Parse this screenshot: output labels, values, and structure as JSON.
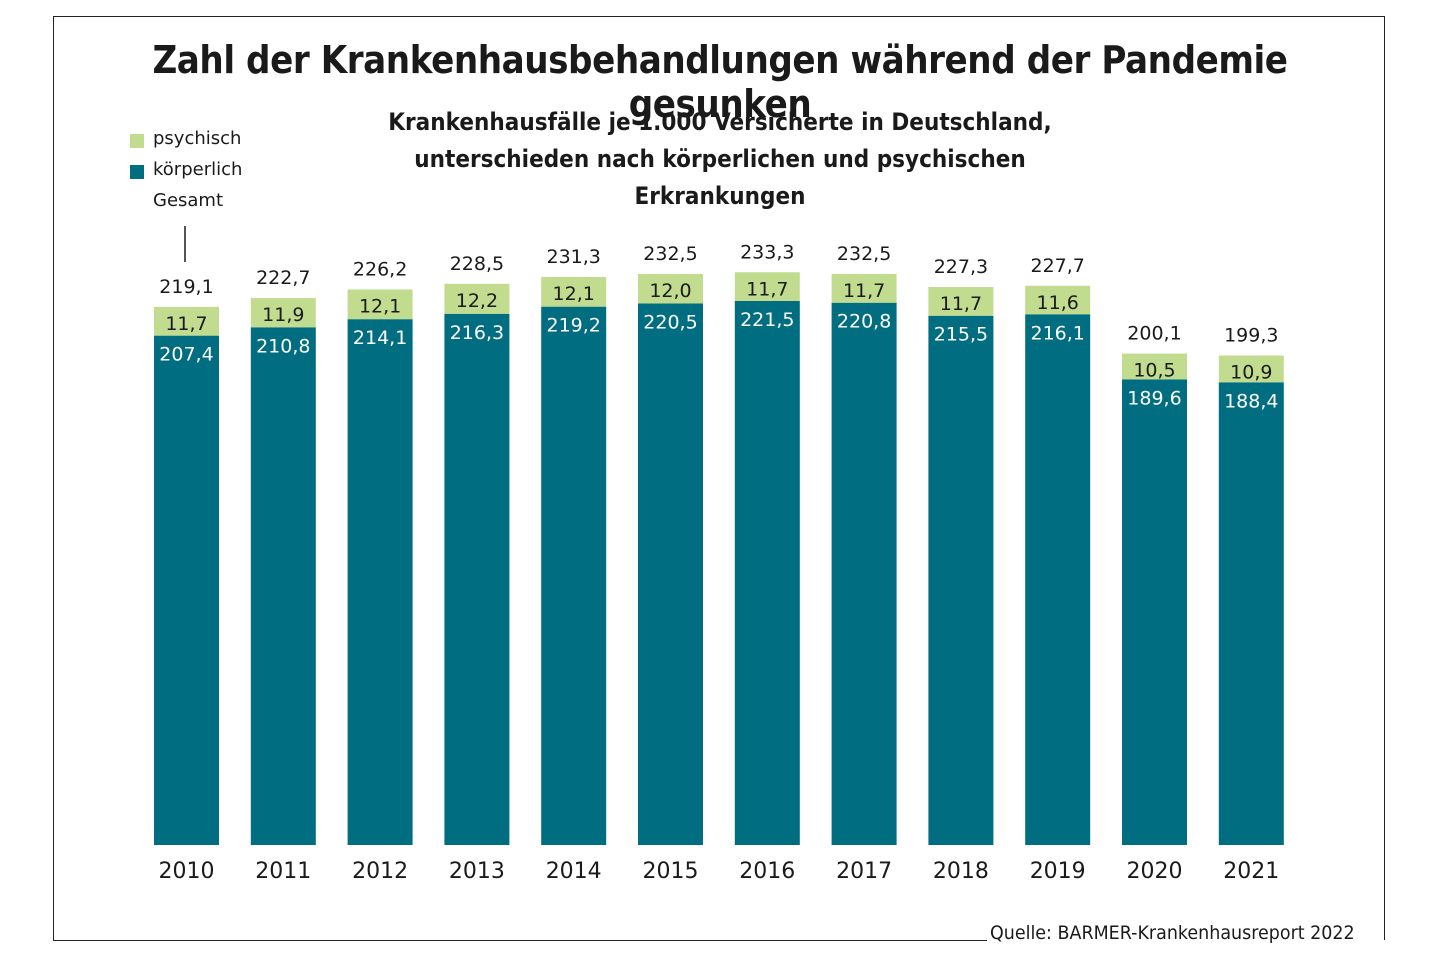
{
  "title": "Zahl der Krankenhausbehandlungen während der Pandemie gesunken",
  "subtitle_line1": "Krankenhausfälle je 1.000 Versicherte in Deutschland,",
  "subtitle_line2": "unterschieden nach körperlichen und psychischen Erkrankungen",
  "legend": {
    "psychisch": "psychisch",
    "koerperlich": "körperlich",
    "gesamt": "Gesamt"
  },
  "source": "Quelle: BARMER-Krankenhausreport 2022",
  "colors": {
    "psychisch": "#c2dc8f",
    "koerperlich": "#016d80",
    "text_dark": "#1a1a1a",
    "text_light": "#ffffff"
  },
  "chart_data": {
    "type": "bar",
    "stacked": true,
    "title": "Zahl der Krankenhausbehandlungen während der Pandemie gesunken",
    "subtitle": "Krankenhausfälle je 1.000 Versicherte in Deutschland, unterschieden nach körperlichen und psychischen Erkrankungen",
    "xlabel": "",
    "ylabel": "",
    "ylim": [
      0,
      240
    ],
    "grid": false,
    "legend_position": "top-left",
    "categories": [
      "2010",
      "2011",
      "2012",
      "2013",
      "2014",
      "2015",
      "2016",
      "2017",
      "2018",
      "2019",
      "2020",
      "2021"
    ],
    "series": [
      {
        "name": "körperlich",
        "values": [
          207.4,
          210.8,
          214.1,
          216.3,
          219.2,
          220.5,
          221.5,
          220.8,
          215.5,
          216.1,
          189.6,
          188.4
        ],
        "labels": [
          "207,4",
          "210,8",
          "214,1",
          "216,3",
          "219,2",
          "220,5",
          "221,5",
          "220,8",
          "215,5",
          "216,1",
          "189,6",
          "188,4"
        ]
      },
      {
        "name": "psychisch",
        "values": [
          11.7,
          11.9,
          12.1,
          12.2,
          12.1,
          12.0,
          11.7,
          11.7,
          11.7,
          11.6,
          10.5,
          10.9
        ],
        "labels": [
          "11,7",
          "11,9",
          "12,1",
          "12,2",
          "12,1",
          "12,0",
          "11,7",
          "11,7",
          "11,7",
          "11,6",
          "10,5",
          "10,9"
        ]
      }
    ],
    "totals": {
      "name": "Gesamt",
      "values": [
        219.1,
        222.7,
        226.2,
        228.5,
        231.3,
        232.5,
        233.3,
        232.5,
        227.3,
        227.7,
        200.1,
        199.3
      ],
      "labels": [
        "219,1",
        "222,7",
        "226,2",
        "228,5",
        "231,3",
        "232,5",
        "233,3",
        "232,5",
        "227,3",
        "227,7",
        "200,1",
        "199,3"
      ]
    },
    "source": "Quelle: BARMER-Krankenhausreport 2022"
  }
}
